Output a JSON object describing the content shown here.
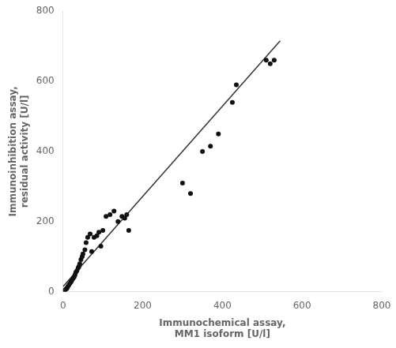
{
  "chart_data": {
    "type": "scatter",
    "xlabel": "Immunochemical assay,\nMM1 isoform [U/l]",
    "ylabel": "Immunoinhibition assay,\nresidual activity [U/l]",
    "series": [
      {
        "type": "line",
        "color": "#333333",
        "line_style": "solid",
        "x": [
          0,
          545
        ],
        "values": [
          15,
          715
        ]
      },
      {
        "type": "scatter",
        "color": "#111111",
        "marker": "circle",
        "x": [
          5,
          8,
          10,
          12,
          15,
          18,
          20,
          22,
          25,
          28,
          30,
          32,
          35,
          38,
          40,
          42,
          45,
          48,
          50,
          55,
          58,
          62,
          68,
          72,
          78,
          85,
          90,
          95,
          100,
          108,
          118,
          128,
          138,
          148,
          155,
          160,
          165,
          300,
          320,
          350,
          370,
          390,
          425,
          435,
          510,
          520,
          530
        ],
        "values": [
          5,
          8,
          10,
          15,
          20,
          25,
          28,
          32,
          38,
          42,
          48,
          55,
          60,
          68,
          72,
          80,
          92,
          100,
          108,
          120,
          140,
          155,
          165,
          115,
          155,
          160,
          170,
          130,
          175,
          215,
          220,
          230,
          200,
          215,
          210,
          220,
          175,
          310,
          280,
          400,
          415,
          450,
          540,
          590,
          660,
          650,
          660
        ]
      }
    ],
    "xlim": [
      0,
      800
    ],
    "ylim": [
      0,
      800
    ],
    "xticks": [
      0,
      200,
      400,
      600,
      800
    ],
    "yticks": [
      0,
      200,
      400,
      600,
      800
    ],
    "grid": false
  }
}
